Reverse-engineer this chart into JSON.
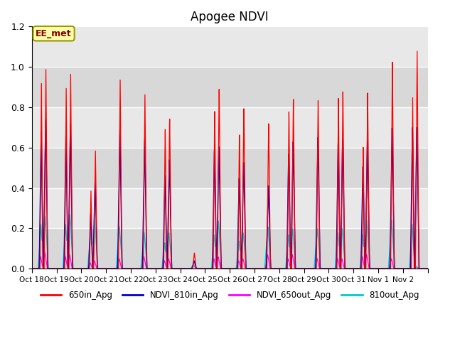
{
  "title": "Apogee NDVI",
  "annotation": "EE_met",
  "x_tick_labels": [
    "Oct 18",
    "Oct 19",
    "Oct 20",
    "Oct 21",
    "Oct 22",
    "Oct 23",
    "Oct 24",
    "Oct 25",
    "Oct 26",
    "Oct 27",
    "Oct 28",
    "Oct 29",
    "Oct 30",
    "Oct 31",
    "Nov 1",
    "Nov 2"
  ],
  "ylim": [
    0.0,
    1.2
  ],
  "yticks": [
    0.0,
    0.2,
    0.4,
    0.6,
    0.8,
    1.0,
    1.2
  ],
  "colors": {
    "650in_Apg": "#ff0000",
    "NDVI_810in_Apg": "#0000cc",
    "NDVI_650out_Apg": "#ff00ff",
    "810out_Apg": "#00cccc"
  },
  "legend_labels": [
    "650in_Apg",
    "NDVI_810in_Apg",
    "NDVI_650out_Apg",
    "810out_Apg"
  ],
  "background_color": "#e8e8e8",
  "fig_background": "#ffffff",
  "grid_color": "#ffffff",
  "num_days": 16,
  "peaks_650in": [
    0.99,
    0.97,
    0.59,
    0.95,
    0.88,
    0.76,
    0.08,
    0.92,
    0.82,
    0.74,
    0.86,
    0.85,
    0.89,
    0.88,
    1.03,
    1.08
  ],
  "peaks_810in": [
    0.74,
    0.72,
    0.45,
    0.7,
    0.65,
    0.55,
    0.04,
    0.62,
    0.54,
    0.42,
    0.64,
    0.66,
    0.65,
    0.64,
    0.7,
    0.7
  ],
  "peaks_650out": [
    0.08,
    0.07,
    0.04,
    0.05,
    0.06,
    0.05,
    0.02,
    0.06,
    0.05,
    0.07,
    0.07,
    0.05,
    0.05,
    0.07,
    0.05,
    0.01
  ],
  "peaks_810out": [
    0.26,
    0.27,
    0.24,
    0.21,
    0.18,
    0.18,
    0.02,
    0.24,
    0.18,
    0.21,
    0.2,
    0.2,
    0.2,
    0.24,
    0.24,
    0.01
  ],
  "secondary_650in": [
    0.92,
    0.9,
    0.39,
    0.0,
    0.0,
    0.71,
    0.0,
    0.81,
    0.69,
    0.0,
    0.8,
    0.0,
    0.86,
    0.61,
    0.0,
    0.85
  ],
  "secondary_810in": [
    0.68,
    0.68,
    0.28,
    0.0,
    0.0,
    0.47,
    0.0,
    0.6,
    0.46,
    0.0,
    0.58,
    0.0,
    0.63,
    0.51,
    0.0,
    0.7
  ],
  "secondary_810out": [
    0.22,
    0.22,
    0.18,
    0.0,
    0.0,
    0.13,
    0.0,
    0.17,
    0.14,
    0.0,
    0.17,
    0.0,
    0.18,
    0.17,
    0.0,
    0.22
  ],
  "secondary_650out": [
    0.06,
    0.06,
    0.03,
    0.0,
    0.0,
    0.04,
    0.0,
    0.05,
    0.04,
    0.0,
    0.05,
    0.0,
    0.05,
    0.06,
    0.0,
    0.01
  ]
}
